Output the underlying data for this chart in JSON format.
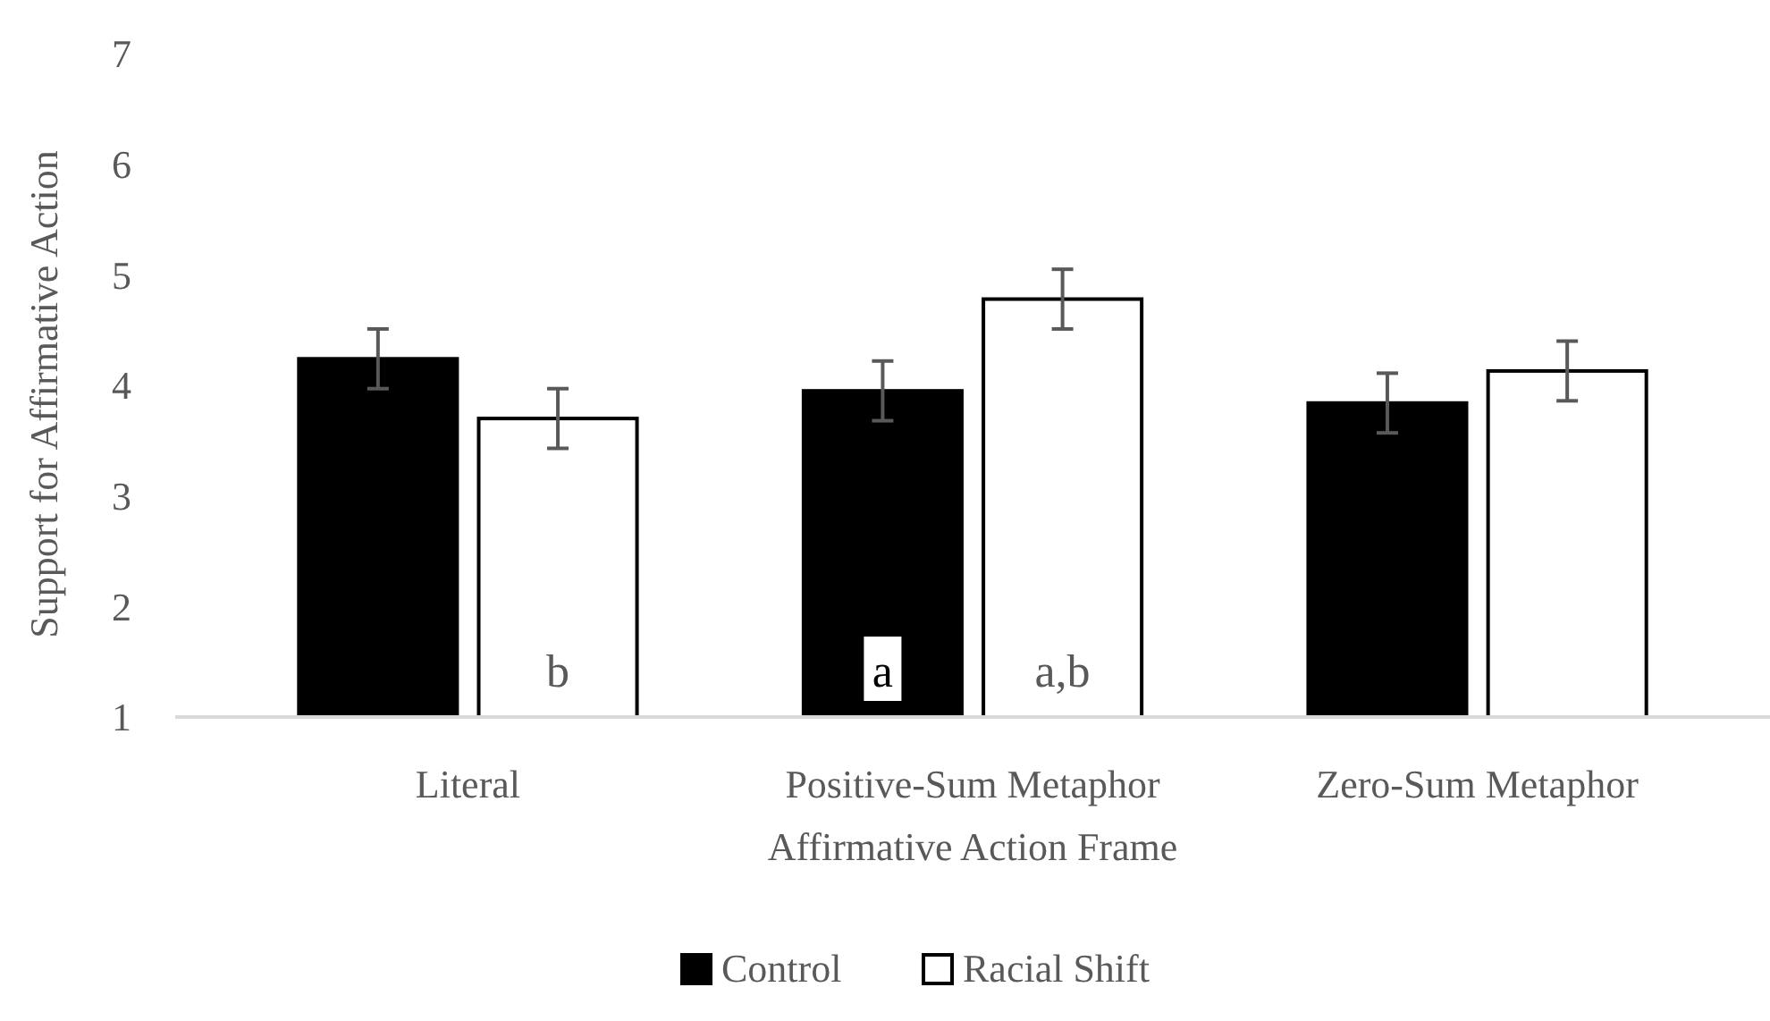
{
  "chart_data": {
    "type": "bar",
    "xlabel": "Affirmative Action Frame",
    "ylabel": "Support for Affirmative Action",
    "categories": [
      "Literal",
      "Positive-Sum Metaphor",
      "Zero-Sum Metaphor"
    ],
    "series": [
      {
        "name": "Control",
        "color": "#000000",
        "values": [
          4.24,
          3.95,
          3.84
        ],
        "errors": [
          0.27,
          0.27,
          0.27
        ],
        "value_labels": [
          null,
          "a",
          null
        ]
      },
      {
        "name": "Racial Shift",
        "color": "#ffffff",
        "values": [
          3.7,
          4.78,
          4.13
        ],
        "errors": [
          0.27,
          0.27,
          0.27
        ],
        "value_labels": [
          "b",
          "a,b",
          null
        ]
      }
    ],
    "ylim": [
      1,
      7
    ],
    "yticks": [
      1,
      2,
      3,
      4,
      5,
      6,
      7
    ],
    "grid": false,
    "legend": "bottom"
  }
}
